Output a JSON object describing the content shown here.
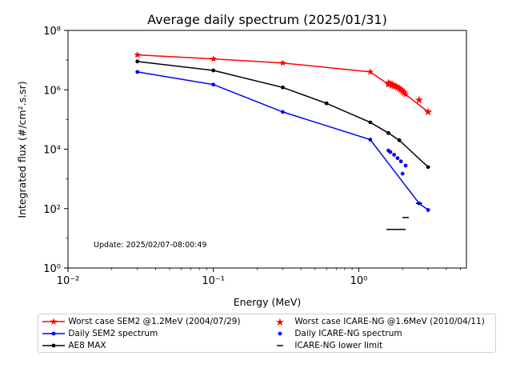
{
  "chart_data": {
    "type": "scatter",
    "title": "Average daily spectrum (2025/01/31)",
    "xlabel": "Energy (MeV)",
    "ylabel": "Integrated flux (#/cm².s.sr)",
    "xscale": "log",
    "yscale": "log",
    "xlim": [
      0.01,
      5.5
    ],
    "ylim": [
      1,
      100000000
    ],
    "xticks": [
      "10⁻²",
      "10⁻¹",
      "10⁰"
    ],
    "yticks": [
      "10⁰",
      "10²",
      "10⁴",
      "10⁶",
      "10⁸"
    ],
    "annotation": "Update: 2025/02/07-08:00:49",
    "series": [
      {
        "name": "Worst case SEM2 @1.2MeV (2004/07/29)",
        "color": "#ff0000",
        "marker": "star",
        "line": true,
        "x": [
          0.03,
          0.1,
          0.3,
          1.2,
          1.6,
          1.7,
          1.8,
          1.9,
          2.0,
          2.1,
          3.0
        ],
        "y": [
          15000000,
          11000000,
          8000000,
          4000000,
          1500000,
          1400000,
          1300000,
          1100000,
          900000,
          700000,
          180000
        ]
      },
      {
        "name": "Daily SEM2 spectrum",
        "color": "#0000ff",
        "marker": "dot",
        "line": true,
        "x": [
          0.03,
          0.1,
          0.3,
          1.2,
          2.6,
          3.0
        ],
        "y": [
          4000000,
          1500000,
          180000,
          21000,
          150,
          90
        ]
      },
      {
        "name": "AE8 MAX",
        "color": "#000000",
        "marker": "dot",
        "line": true,
        "x": [
          0.03,
          0.1,
          0.3,
          0.6,
          1.2,
          1.6,
          1.9,
          3.0
        ],
        "y": [
          9000000,
          4500000,
          1200000,
          350000,
          80000,
          35000,
          20000,
          2500
        ]
      },
      {
        "name": "Worst case ICARE-NG @1.6MeV (2010/04/11)",
        "color": "#ff0000",
        "marker": "star",
        "line": false,
        "x": [
          1.6,
          1.65,
          1.7,
          1.75,
          1.8,
          1.85,
          1.9,
          1.95,
          2.0,
          2.05,
          2.6,
          3.0
        ],
        "y": [
          1700000,
          1600000,
          1500000,
          1350000,
          1300000,
          1200000,
          1100000,
          1000000,
          900000,
          800000,
          450000,
          180000
        ]
      },
      {
        "name": "Daily ICARE-NG spectrum",
        "color": "#0000ff",
        "marker": "dot",
        "line": false,
        "x": [
          1.6,
          1.65,
          1.75,
          1.85,
          1.95,
          2.0,
          2.1
        ],
        "y": [
          9000,
          8000,
          6500,
          5000,
          3900,
          1500,
          2800
        ]
      },
      {
        "name": "ICARE-NG lower limit",
        "color": "#000000",
        "marker": "hline",
        "line": false,
        "x": [
          2.1,
          2.6
        ],
        "y": [
          50,
          150
        ]
      }
    ],
    "lower_limit_bar": {
      "x": [
        1.55,
        2.1
      ],
      "y": 20
    }
  },
  "legend": {
    "items": [
      {
        "label": "Worst case SEM2 @1.2MeV (2004/07/29)"
      },
      {
        "label": "Worst case ICARE-NG @1.6MeV (2010/04/11)"
      },
      {
        "label": "Daily SEM2 spectrum"
      },
      {
        "label": "Daily ICARE-NG spectrum"
      },
      {
        "label": "AE8 MAX"
      },
      {
        "label": "ICARE-NG lower limit"
      }
    ]
  }
}
